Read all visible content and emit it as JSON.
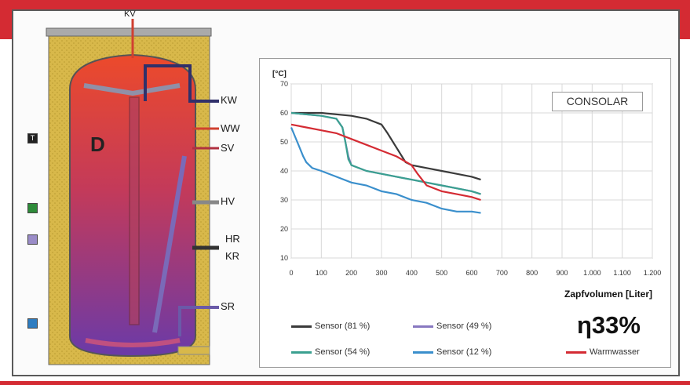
{
  "tank": {
    "labels": {
      "top": "KV",
      "kw": "KW",
      "ww": "WW",
      "sv": "SV",
      "hv": "HV",
      "hr": "HR",
      "kr": "KR",
      "sr": "SR",
      "zone": "D"
    },
    "sensors": [
      {
        "name": "T",
        "color": "#222222"
      },
      {
        "name": "",
        "color": "#2e8b3a"
      },
      {
        "name": "",
        "color": "#9a8cc8"
      },
      {
        "name": "",
        "color": "#2e7dc1"
      }
    ]
  },
  "chart_data": {
    "type": "line",
    "ylabel": "[°C]",
    "xlabel": "Zapfvolumen [Liter]",
    "xlim": [
      0,
      1200
    ],
    "ylim": [
      10,
      70
    ],
    "xticks": [
      "0",
      "100",
      "200",
      "300",
      "400",
      "500",
      "600",
      "700",
      "800",
      "900",
      "1.000",
      "1.100",
      "1.200"
    ],
    "yticks": [
      "10",
      "20",
      "30",
      "40",
      "50",
      "60",
      "70"
    ],
    "grid": true,
    "brand": "CONSOLAR",
    "efficiency": "η33%",
    "series": [
      {
        "name": "Sensor  (81 %)",
        "color": "#3a3a3a",
        "x": [
          0,
          100,
          200,
          250,
          300,
          320,
          350,
          380,
          400,
          450,
          500,
          550,
          600,
          630
        ],
        "y": [
          60,
          60,
          59,
          58,
          56,
          53,
          48,
          43,
          42,
          41,
          40,
          39,
          38,
          37
        ]
      },
      {
        "name": "Sensor  (49 %)",
        "color": "#8878c0",
        "x": [
          0,
          100,
          150,
          170,
          180,
          190,
          200,
          250,
          300,
          350,
          400,
          450,
          500,
          550,
          600,
          630
        ],
        "y": [
          60,
          59,
          58,
          55,
          50,
          45,
          42,
          40,
          39,
          38,
          37,
          36,
          35,
          34,
          33,
          32
        ]
      },
      {
        "name": "Sensor  (54 %)",
        "color": "#3aa090",
        "x": [
          0,
          100,
          150,
          170,
          180,
          190,
          200,
          250,
          300,
          350,
          400,
          450,
          500,
          550,
          600,
          630
        ],
        "y": [
          60,
          59,
          58,
          55,
          50,
          44,
          42,
          40,
          39,
          38,
          37,
          36,
          35,
          34,
          33,
          32
        ]
      },
      {
        "name": "Sensor  (12 %)",
        "color": "#3a8fcc",
        "x": [
          0,
          20,
          40,
          50,
          70,
          100,
          150,
          200,
          250,
          300,
          350,
          400,
          450,
          500,
          550,
          600,
          630
        ],
        "y": [
          55,
          50,
          45,
          43,
          41,
          40,
          38,
          36,
          35,
          33,
          32,
          30,
          29,
          27,
          26,
          26,
          25.5
        ]
      },
      {
        "name": "Warmwasser",
        "color": "#d42b33",
        "x": [
          0,
          50,
          100,
          150,
          200,
          250,
          300,
          350,
          400,
          420,
          450,
          500,
          550,
          600,
          630
        ],
        "y": [
          56,
          55,
          54,
          53,
          51,
          49,
          47,
          45,
          42,
          39,
          35,
          33,
          32,
          31,
          30
        ]
      }
    ]
  }
}
